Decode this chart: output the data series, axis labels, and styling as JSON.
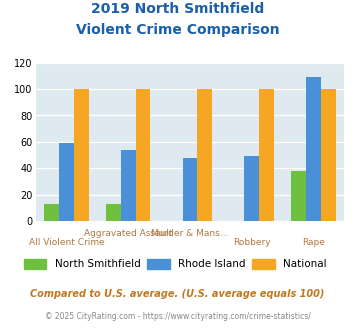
{
  "title_line1": "2019 North Smithfield",
  "title_line2": "Violent Crime Comparison",
  "categories": [
    "All Violent Crime",
    "Aggravated Assault",
    "Murder & Mans...",
    "Robbery",
    "Rape"
  ],
  "xlabels_row1": [
    "All Violent Crime",
    "Aggravated Assault",
    "Murder & Mans...",
    "Robbery",
    "Rape"
  ],
  "series": {
    "North Smithfield": [
      13,
      13,
      0,
      0,
      38
    ],
    "Rhode Island": [
      59,
      54,
      48,
      49,
      109
    ],
    "National": [
      100,
      100,
      100,
      100,
      100
    ]
  },
  "colors": {
    "North Smithfield": "#70c040",
    "Rhode Island": "#4a90d9",
    "National": "#f5a623"
  },
  "ylim": [
    0,
    120
  ],
  "yticks": [
    0,
    20,
    40,
    60,
    80,
    100,
    120
  ],
  "footnote1": "Compared to U.S. average. (U.S. average equals 100)",
  "footnote2": "© 2025 CityRating.com - https://www.cityrating.com/crime-statistics/",
  "background_color": "#deeaf0",
  "title_color": "#1a5fac",
  "tick_label_color": "#b07840",
  "legend_labels": [
    "North Smithfield",
    "Rhode Island",
    "National"
  ]
}
